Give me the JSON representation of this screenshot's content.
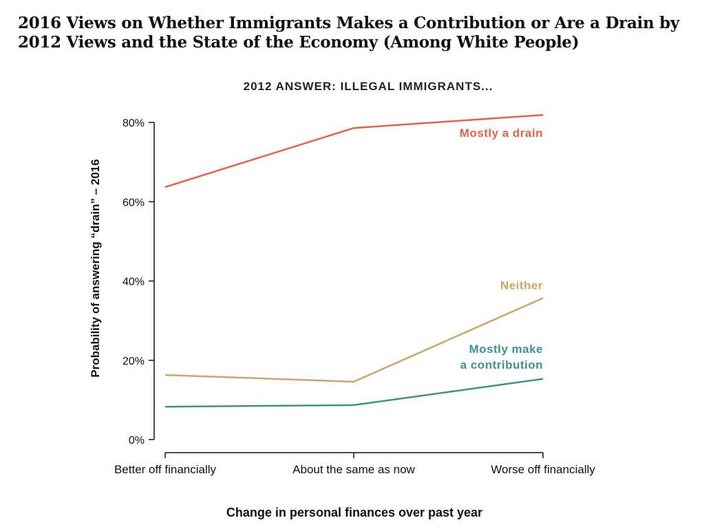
{
  "title_line1": "2016 Views on Whether Immigrants Makes a Contribution or Are a Drain by",
  "title_line2": "2012 Views and the State of the Economy (Among White People)",
  "chart_data": {
    "type": "line",
    "title": "2012 ANSWER: ILLEGAL IMMIGRANTS...",
    "xlabel": "Change in personal finances over past year",
    "ylabel": "Probability of answering “drain” – 2016",
    "categories": [
      "Better off financially",
      "About the same as now",
      "Worse off financially"
    ],
    "ylim": [
      0,
      80
    ],
    "yticks": [
      0,
      20,
      40,
      60,
      80
    ],
    "ytick_labels": [
      "0%",
      "20%",
      "40%",
      "60%",
      "80%"
    ],
    "grid": false,
    "legend": "inline-right",
    "series": [
      {
        "name": "Mostly a drain",
        "label_lines": [
          "Mostly a drain"
        ],
        "color": "#e8604c",
        "values": [
          63.7,
          78.6,
          81.9
        ]
      },
      {
        "name": "Neither",
        "label_lines": [
          "Neither"
        ],
        "color": "#c9a66b",
        "values": [
          16.3,
          14.6,
          35.7
        ]
      },
      {
        "name": "Mostly make a contribution",
        "label_lines": [
          "Mostly make",
          "a contribution"
        ],
        "color": "#3f9189",
        "values": [
          8.3,
          8.7,
          15.3
        ]
      }
    ]
  }
}
